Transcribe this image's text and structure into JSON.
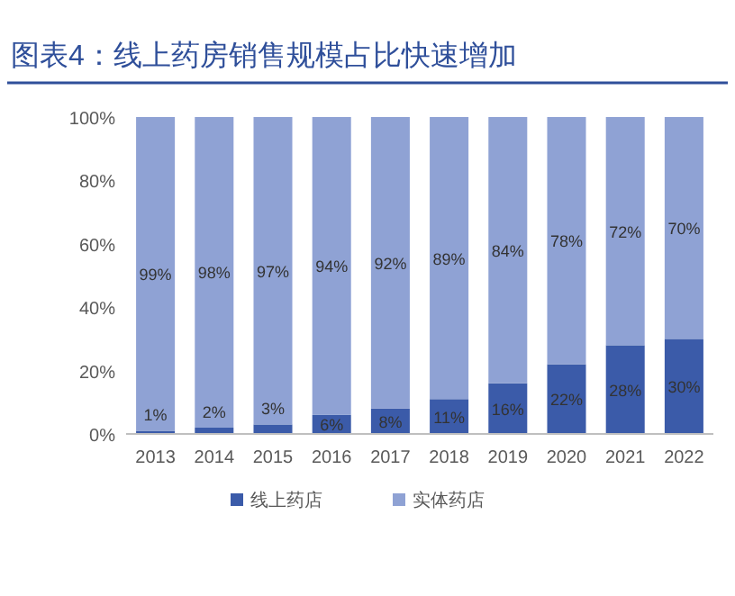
{
  "chart_data": {
    "type": "bar",
    "stacked": true,
    "title": "图表4：线上药房销售规模占比快速增加",
    "categories": [
      "2013",
      "2014",
      "2015",
      "2016",
      "2017",
      "2018",
      "2019",
      "2020",
      "2021",
      "2022"
    ],
    "series": [
      {
        "name": "线上药店",
        "color": "#3b5ba9",
        "values": [
          1,
          2,
          3,
          6,
          8,
          11,
          16,
          22,
          28,
          30
        ],
        "value_labels": [
          "1%",
          "2%",
          "3%",
          "6%",
          "8%",
          "11%",
          "16%",
          "22%",
          "28%",
          "30%"
        ]
      },
      {
        "name": "实体药店",
        "color": "#8fa2d4",
        "values": [
          99,
          98,
          97,
          94,
          92,
          89,
          84,
          78,
          72,
          70
        ],
        "value_labels": [
          "99%",
          "98%",
          "97%",
          "94%",
          "92%",
          "89%",
          "84%",
          "78%",
          "72%",
          "70%"
        ]
      }
    ],
    "ylim": [
      0,
      100
    ],
    "yticks": [
      {
        "value": 0,
        "label": "0%"
      },
      {
        "value": 20,
        "label": "20%"
      },
      {
        "value": 40,
        "label": "40%"
      },
      {
        "value": 60,
        "label": "60%"
      },
      {
        "value": 80,
        "label": "80%"
      },
      {
        "value": 100,
        "label": "100%"
      }
    ],
    "legend": "bottom"
  }
}
